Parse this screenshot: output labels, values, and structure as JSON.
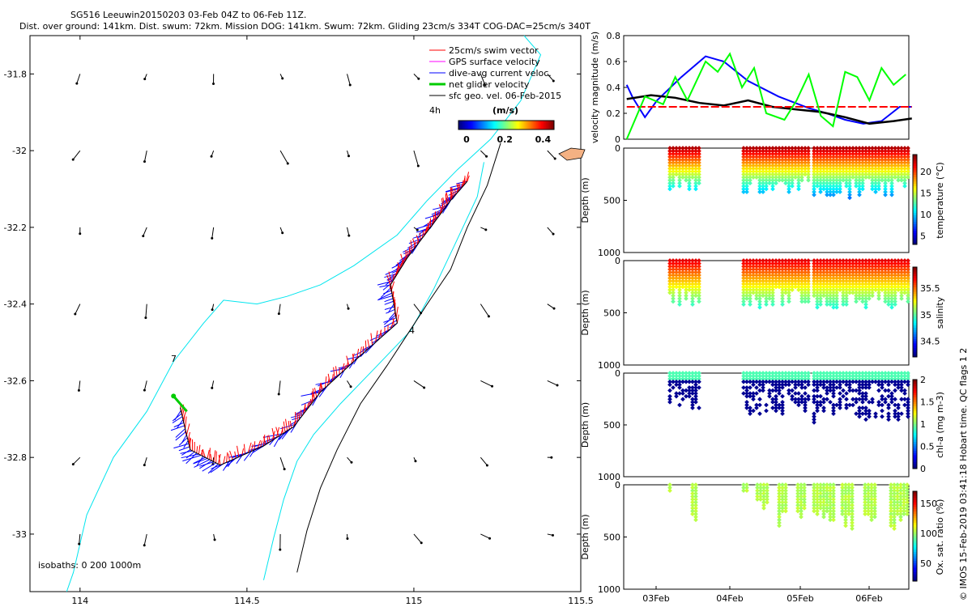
{
  "header": {
    "title_line1": "SG516 Leeuwin20150203 03-Feb 04Z to 06-Feb 11Z.",
    "title_line2": "Dist. over ground: 141km. Dist. swum: 72km. Mission DOG: 141km. Swum: 72km. Gliding 23cm/s 334T COG-DAC=25cm/s 340T"
  },
  "credit": "© IMOS 15-Feb-2019 03:41:18 Hobart time. QC flags 1  2",
  "chart_data": [
    {
      "type": "scatter",
      "panel": "map",
      "xlim": [
        113.85,
        115.5
      ],
      "ylim": [
        -33.15,
        -31.7
      ],
      "x_ticks": [
        114,
        114.5,
        115,
        115.5
      ],
      "x_tick_labels": [
        "114",
        "114.5",
        "115",
        "115.5"
      ],
      "y_ticks": [
        -31.8,
        -32,
        -32.2,
        -32.4,
        -32.6,
        -32.8,
        -33
      ],
      "y_tick_labels": [
        "-31.8",
        "-32",
        "-32.2",
        "-32.4",
        "-32.6",
        "-32.8",
        "-33"
      ],
      "legend": {
        "position": "top-right",
        "entries": [
          {
            "label": "25cm/s swim vector",
            "color": "#ff0000"
          },
          {
            "label": "GPS surface velocity",
            "color": "#ff00ff"
          },
          {
            "label": "dive-avg current veloc.",
            "color": "#0000ff"
          },
          {
            "label": "net glider velocity",
            "color": "#00cc00"
          },
          {
            "label": "sfc geo. vel. 06-Feb-2015",
            "color": "#000000"
          }
        ]
      },
      "colorbar": {
        "label": "(m/s)",
        "ticks": [
          "0",
          "0.2",
          "0.4"
        ],
        "range": [
          0,
          0.5
        ],
        "note": "4h"
      },
      "annotations": [
        {
          "text": "isobaths: 0   200  1000m"
        },
        {
          "text": "7"
        },
        {
          "text": "4"
        }
      ],
      "coastline": [
        [
          115.33,
          -31.7
        ],
        [
          115.38,
          -31.75
        ],
        [
          115.32,
          -31.87
        ],
        [
          115.23,
          -31.97
        ],
        [
          115.13,
          -32.05
        ],
        [
          115.04,
          -32.13
        ],
        [
          114.95,
          -32.22
        ],
        [
          114.82,
          -32.3
        ],
        [
          114.72,
          -32.35
        ],
        [
          114.62,
          -32.38
        ],
        [
          114.53,
          -32.4
        ],
        [
          114.43,
          -32.39
        ],
        [
          114.37,
          -32.45
        ],
        [
          114.28,
          -32.55
        ],
        [
          114.2,
          -32.68
        ],
        [
          114.1,
          -32.8
        ],
        [
          114.02,
          -32.95
        ],
        [
          113.98,
          -33.1
        ],
        [
          113.96,
          -33.15
        ]
      ],
      "isobath_200m": [
        [
          115.21,
          -32.03
        ],
        [
          115.19,
          -32.12
        ],
        [
          115.12,
          -32.25
        ],
        [
          115.06,
          -32.36
        ],
        [
          114.99,
          -32.47
        ],
        [
          114.88,
          -32.57
        ],
        [
          114.78,
          -32.66
        ],
        [
          114.7,
          -32.74
        ],
        [
          114.65,
          -32.81
        ],
        [
          114.61,
          -32.91
        ],
        [
          114.58,
          -33.01
        ],
        [
          114.55,
          -33.12
        ]
      ],
      "isobath_1000m": [
        [
          115.26,
          -31.98
        ],
        [
          115.22,
          -32.09
        ],
        [
          115.16,
          -32.2
        ],
        [
          115.11,
          -32.31
        ],
        [
          115.04,
          -32.4
        ],
        [
          114.98,
          -32.48
        ],
        [
          114.92,
          -32.56
        ],
        [
          114.84,
          -32.66
        ],
        [
          114.77,
          -32.78
        ],
        [
          114.72,
          -32.88
        ],
        [
          114.68,
          -32.99
        ],
        [
          114.65,
          -33.1
        ]
      ],
      "glider_track": [
        [
          115.16,
          -32.08
        ],
        [
          115.11,
          -32.13
        ],
        [
          115.05,
          -32.2
        ],
        [
          114.98,
          -32.28
        ],
        [
          114.93,
          -32.35
        ],
        [
          114.95,
          -32.45
        ],
        [
          114.82,
          -32.55
        ],
        [
          114.72,
          -32.63
        ],
        [
          114.64,
          -32.72
        ],
        [
          114.55,
          -32.77
        ],
        [
          114.42,
          -32.82
        ],
        [
          114.33,
          -32.78
        ],
        [
          114.3,
          -32.67
        ]
      ],
      "net_velocity": {
        "from": [
          114.32,
          -32.68
        ],
        "to": [
          114.28,
          -32.64
        ]
      }
    },
    {
      "type": "line",
      "panel": "velocity",
      "ylabel": "velocity magnitude (m/s)",
      "ylim": [
        0,
        0.8
      ],
      "y_ticks": [
        0,
        0.2,
        0.4,
        0.6,
        0.8
      ],
      "y_tick_labels": [
        "0",
        "0.2",
        "0.4",
        "0.6",
        "0.8"
      ],
      "xlim": [
        0,
        4.7
      ],
      "series": [
        {
          "name": "dive-avg current",
          "color": "#0000ff",
          "x": [
            0.0,
            0.1,
            0.3,
            0.5,
            0.9,
            1.3,
            1.6,
            2.0,
            2.5,
            3.0,
            3.3,
            3.6,
            3.9,
            4.2,
            4.5,
            4.7
          ],
          "values": [
            0.42,
            0.32,
            0.17,
            0.3,
            0.48,
            0.64,
            0.6,
            0.45,
            0.33,
            0.24,
            0.2,
            0.15,
            0.12,
            0.14,
            0.25,
            0.25
          ]
        },
        {
          "name": "net glider",
          "color": "#000000",
          "x": [
            0.0,
            0.4,
            0.8,
            1.2,
            1.6,
            2.0,
            2.4,
            2.8,
            3.2,
            3.6,
            4.0,
            4.4,
            4.7
          ],
          "values": [
            0.31,
            0.34,
            0.32,
            0.28,
            0.26,
            0.3,
            0.25,
            0.23,
            0.21,
            0.17,
            0.12,
            0.14,
            0.16
          ]
        },
        {
          "name": "swim",
          "color": "#ff0000",
          "x": [
            0.0,
            4.7
          ],
          "values": [
            0.25,
            0.25
          ]
        },
        {
          "name": "GPS surface",
          "color": "#00ff00",
          "x": [
            0.0,
            0.3,
            0.6,
            0.8,
            1.0,
            1.3,
            1.5,
            1.7,
            1.9,
            2.1,
            2.3,
            2.6,
            2.8,
            3.0,
            3.2,
            3.4,
            3.6,
            3.8,
            4.0,
            4.2,
            4.4,
            4.6
          ],
          "values": [
            0.0,
            0.33,
            0.27,
            0.48,
            0.3,
            0.6,
            0.52,
            0.66,
            0.4,
            0.55,
            0.2,
            0.15,
            0.3,
            0.5,
            0.18,
            0.1,
            0.52,
            0.48,
            0.3,
            0.55,
            0.42,
            0.5
          ]
        }
      ]
    },
    {
      "type": "scatter",
      "panel": "temperature",
      "ylabel": "Depth (m)",
      "ylim": [
        0,
        1000
      ],
      "y_tick_labels": [
        "0",
        "500",
        "1000"
      ],
      "colorbar_label": "temperature (°C)",
      "colorbar_ticks": [
        "5",
        "10",
        "15",
        "20"
      ],
      "crange": [
        3,
        24
      ]
    },
    {
      "type": "scatter",
      "panel": "salinity",
      "ylabel": "Depth (m)",
      "ylim": [
        0,
        1000
      ],
      "y_tick_labels": [
        "0",
        "500",
        "1000"
      ],
      "colorbar_label": "salinity",
      "colorbar_ticks": [
        "34.5",
        "35",
        "35.5"
      ],
      "crange": [
        34.2,
        35.9
      ]
    },
    {
      "type": "scatter",
      "panel": "chla",
      "ylabel": "Depth (m)",
      "ylim": [
        0,
        1000
      ],
      "y_tick_labels": [
        "0",
        "500",
        "1000"
      ],
      "colorbar_label": "chl-a (mg m-3)",
      "colorbar_ticks": [
        "0",
        "0.5",
        "1",
        "1.5",
        "2"
      ],
      "crange": [
        0,
        2
      ]
    },
    {
      "type": "scatter",
      "panel": "oxygen",
      "ylabel": "Depth (m)",
      "ylim": [
        0,
        1000
      ],
      "y_tick_labels": [
        "0",
        "500",
        "1000"
      ],
      "colorbar_label": "Ox. sat. ratio (%)",
      "colorbar_ticks": [
        "50",
        "100",
        "150"
      ],
      "crange": [
        20,
        170
      ],
      "x_tick_labels": [
        "03Feb",
        "04Feb",
        "05Feb",
        "06Feb"
      ]
    }
  ]
}
